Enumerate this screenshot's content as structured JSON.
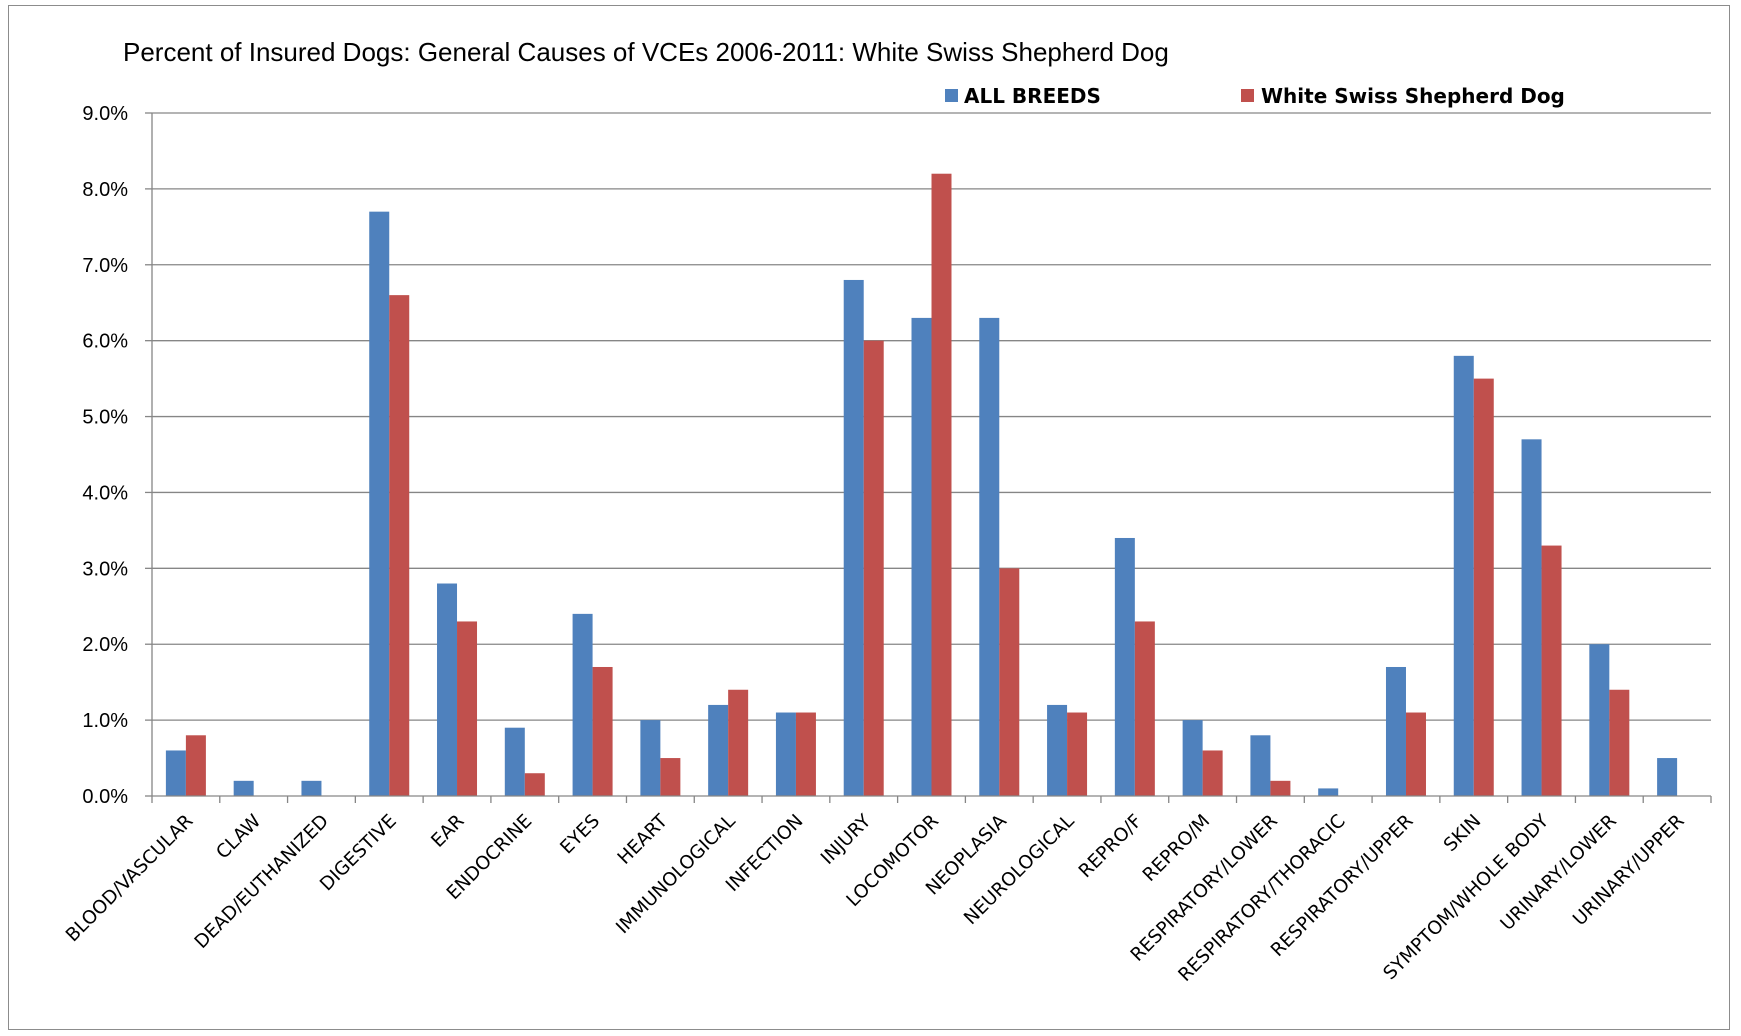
{
  "chart_data": {
    "type": "bar",
    "title": "Percent of Insured Dogs: General Causes of VCEs 2006-2011: White Swiss Shepherd Dog",
    "xlabel": "",
    "ylabel": "",
    "ylim": [
      0,
      9.0
    ],
    "yticks": [
      "0.0%",
      "1.0%",
      "2.0%",
      "3.0%",
      "4.0%",
      "5.0%",
      "6.0%",
      "7.0%",
      "8.0%",
      "9.0%"
    ],
    "grid": true,
    "legend_position": "top-right",
    "categories": [
      "BLOOD/VASCULAR",
      "CLAW",
      "DEAD/EUTHANIZED",
      "DIGESTIVE",
      "EAR",
      "ENDOCRINE",
      "EYES",
      "HEART",
      "IMMUNOLOGICAL",
      "INFECTION",
      "INJURY",
      "LOCOMOTOR",
      "NEOPLASIA",
      "NEUROLOGICAL",
      "REPRO/F",
      "REPRO/M",
      "RESPIRATORY/LOWER",
      "RESPIRATORY/THORACIC",
      "RESPIRATORY/UPPER",
      "SKIN",
      "SYMPTOM/WHOLE BODY",
      "URINARY/LOWER",
      "URINARY/UPPER"
    ],
    "series": [
      {
        "name": "ALL BREEDS",
        "color": "#4f81bd",
        "values": [
          0.6,
          0.2,
          0.2,
          7.7,
          2.8,
          0.9,
          2.4,
          1.0,
          1.2,
          1.1,
          6.8,
          6.3,
          6.3,
          1.2,
          3.4,
          1.0,
          0.8,
          0.1,
          1.7,
          5.8,
          4.7,
          2.0,
          0.5
        ]
      },
      {
        "name": "White Swiss Shepherd Dog",
        "color": "#c0504d",
        "values": [
          0.8,
          0.0,
          0.0,
          6.6,
          2.3,
          0.3,
          1.7,
          0.5,
          1.4,
          1.1,
          6.0,
          8.2,
          3.0,
          1.1,
          2.3,
          0.6,
          0.2,
          0.0,
          1.1,
          5.5,
          3.3,
          1.4,
          0.0
        ]
      }
    ]
  }
}
